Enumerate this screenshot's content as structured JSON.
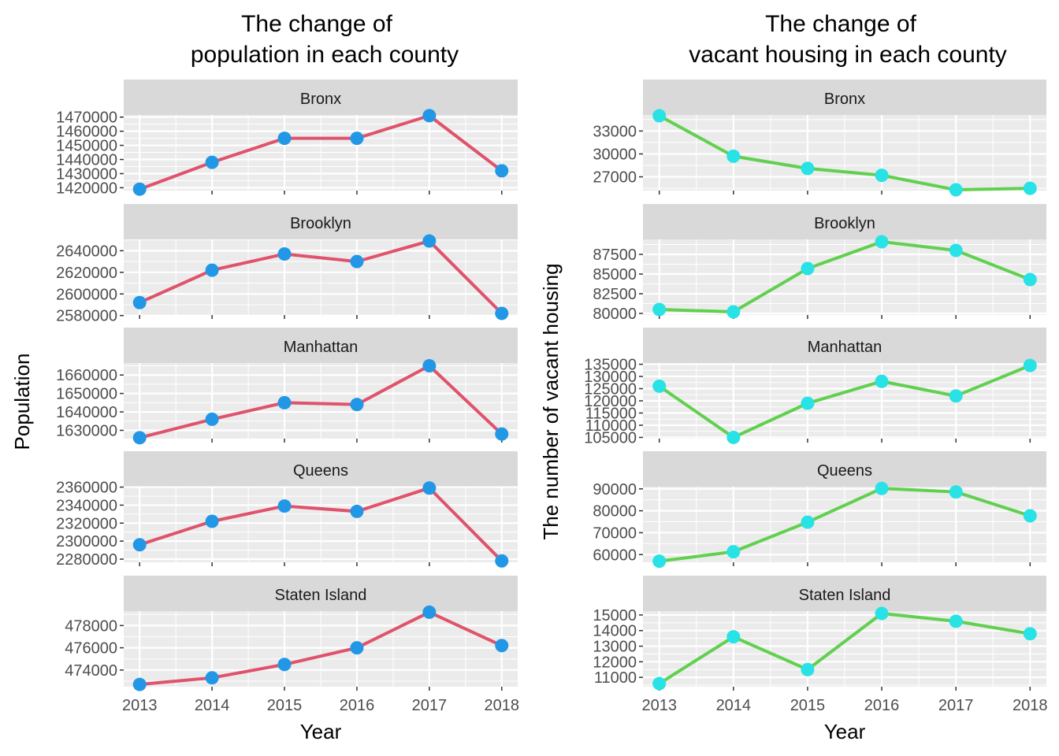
{
  "chart_data": [
    {
      "type": "line",
      "title_lines": [
        "The change of",
        "population in each county"
      ],
      "xlabel": "Year",
      "ylabel": "Population",
      "x": [
        2013,
        2014,
        2015,
        2016,
        2017,
        2018
      ],
      "x_tick_labels": [
        "2013",
        "2014",
        "2015",
        "2016",
        "2017",
        "2018"
      ],
      "line_color": "#DF536B",
      "point_color": "#2297E6",
      "grid": true,
      "panels": [
        {
          "label": "Bronx",
          "values": [
            1419000,
            1438000,
            1455000,
            1455000,
            1471000,
            1432000
          ],
          "ylim": [
            1418000,
            1471500
          ],
          "y_ticks": [
            1420000,
            1430000,
            1440000,
            1450000,
            1460000,
            1470000
          ],
          "y_tick_labels": [
            "1420000",
            "1430000",
            "1440000",
            "1450000",
            "1460000",
            "1470000"
          ]
        },
        {
          "label": "Brooklyn",
          "values": [
            2592000,
            2622000,
            2637000,
            2630000,
            2649000,
            2582000
          ],
          "ylim": [
            2580500,
            2650500
          ],
          "y_ticks": [
            2580000,
            2600000,
            2620000,
            2640000
          ],
          "y_tick_labels": [
            "2580000",
            "2600000",
            "2620000",
            "2640000"
          ]
        },
        {
          "label": "Manhattan",
          "values": [
            1626000,
            1636000,
            1645000,
            1644000,
            1665000,
            1628000
          ],
          "ylim": [
            1625500,
            1666500
          ],
          "y_ticks": [
            1630000,
            1640000,
            1650000,
            1660000
          ],
          "y_tick_labels": [
            "1630000",
            "1640000",
            "1650000",
            "1660000"
          ]
        },
        {
          "label": "Queens",
          "values": [
            2296000,
            2322000,
            2339000,
            2333000,
            2359000,
            2278000
          ],
          "ylim": [
            2276500,
            2360500
          ],
          "y_ticks": [
            2280000,
            2300000,
            2320000,
            2340000,
            2360000
          ],
          "y_tick_labels": [
            "2280000",
            "2300000",
            "2320000",
            "2340000",
            "2360000"
          ]
        },
        {
          "label": "Staten Island",
          "values": [
            472700,
            473300,
            474500,
            476000,
            479200,
            476200
          ],
          "ylim": [
            472500,
            479300
          ],
          "y_ticks": [
            474000,
            476000,
            478000
          ],
          "y_tick_labels": [
            "474000",
            "476000",
            "478000"
          ]
        }
      ]
    },
    {
      "type": "line",
      "title_lines": [
        "The change of",
        "vacant housing in each county"
      ],
      "xlabel": "Year",
      "ylabel": "The number of vacant housing",
      "x": [
        2013,
        2014,
        2015,
        2016,
        2017,
        2018
      ],
      "x_tick_labels": [
        "2013",
        "2014",
        "2015",
        "2016",
        "2017",
        "2018"
      ],
      "line_color": "#61D04F",
      "point_color": "#28E2E5",
      "grid": true,
      "panels": [
        {
          "label": "Bronx",
          "values": [
            35000,
            29700,
            28100,
            27200,
            25300,
            25500
          ],
          "ylim": [
            25200,
            35100
          ],
          "y_ticks": [
            27000,
            30000,
            33000
          ],
          "y_tick_labels": [
            "27000",
            "30000",
            "33000"
          ]
        },
        {
          "label": "Brooklyn",
          "values": [
            80500,
            80200,
            85700,
            89100,
            88000,
            84300
          ],
          "ylim": [
            79800,
            89400
          ],
          "y_ticks": [
            80000,
            82500,
            85000,
            87500
          ],
          "y_tick_labels": [
            "80000",
            "82500",
            "85000",
            "87500"
          ]
        },
        {
          "label": "Manhattan",
          "values": [
            126000,
            105000,
            119000,
            128000,
            122000,
            134500
          ],
          "ylim": [
            104500,
            135500
          ],
          "y_ticks": [
            105000,
            110000,
            115000,
            120000,
            125000,
            130000,
            135000
          ],
          "y_tick_labels": [
            "105000",
            "110000",
            "115000",
            "120000",
            "125000",
            "130000",
            "135000"
          ]
        },
        {
          "label": "Queens",
          "values": [
            57000,
            61300,
            74800,
            90200,
            88600,
            77700
          ],
          "ylim": [
            56500,
            91000
          ],
          "y_ticks": [
            60000,
            70000,
            80000,
            90000
          ],
          "y_tick_labels": [
            "60000",
            "70000",
            "80000",
            "90000"
          ]
        },
        {
          "label": "Staten Island",
          "values": [
            10600,
            13600,
            11500,
            15100,
            14600,
            13800
          ],
          "ylim": [
            10400,
            15250
          ],
          "y_ticks": [
            11000,
            12000,
            13000,
            14000,
            15000
          ],
          "y_tick_labels": [
            "11000",
            "12000",
            "13000",
            "14000",
            "15000"
          ]
        }
      ]
    }
  ]
}
